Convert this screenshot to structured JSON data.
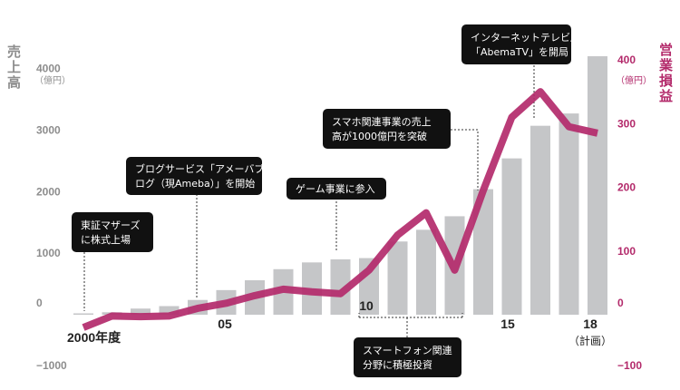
{
  "chart_data": {
    "type": "bar+line",
    "x_labels": [
      "2000年度",
      "05",
      "10",
      "15",
      "18"
    ],
    "x_label_sub": "（計画）",
    "left_axis": {
      "title": "売上高",
      "unit": "（億円）",
      "ticks": [
        4000,
        3000,
        2000,
        1000,
        0,
        -1000
      ],
      "tick_labels": [
        "4000",
        "3000",
        "2000",
        "1000",
        "0",
        "−1000"
      ],
      "ylim": [
        -1000,
        4000
      ]
    },
    "right_axis": {
      "title": "営業損益",
      "unit": "（億円）",
      "ticks": [
        400,
        300,
        200,
        100,
        0,
        -100
      ],
      "tick_labels": [
        "400",
        "300",
        "200",
        "100",
        "0",
        "−100"
      ],
      "ylim": [
        -100,
        400
      ]
    },
    "series": [
      {
        "type": "bar",
        "axis": "left",
        "color": "#c5c6c8",
        "x": [
          2000,
          2001,
          2002,
          2003,
          2004,
          2005,
          2006,
          2007,
          2008,
          2009,
          2010,
          2011,
          2012,
          2013,
          2014,
          2015,
          2016,
          2017,
          2018
        ],
        "values": [
          10,
          40,
          100,
          140,
          240,
          400,
          560,
          740,
          850,
          900,
          920,
          1190,
          1380,
          1600,
          2040,
          2540,
          3070,
          3270,
          4200
        ]
      },
      {
        "type": "line",
        "axis": "right",
        "color": "#b32a6b",
        "x": [
          2000,
          2001,
          2002,
          2003,
          2004,
          2005,
          2006,
          2007,
          2008,
          2009,
          2010,
          2011,
          2012,
          2013,
          2014,
          2015,
          2016,
          2017,
          2018
        ],
        "values": [
          -20,
          -2,
          -3,
          -2,
          10,
          18,
          30,
          40,
          36,
          33,
          70,
          125,
          160,
          70,
          195,
          310,
          350,
          295,
          285
        ]
      }
    ],
    "annotations": [
      {
        "lines": [
          "東証マザーズ",
          "に株式上場"
        ],
        "x": 2000
      },
      {
        "lines": [
          "ブログサービス「アメーバブ",
          "ログ（現Ameba）」を開始"
        ],
        "x": 2004
      },
      {
        "lines": [
          "ゲーム事業に参入"
        ],
        "x": 2009
      },
      {
        "lines": [
          "スマホ関連事業の売上",
          "高が1000億円を突破"
        ],
        "x": 2014
      },
      {
        "lines": [
          "インターネットテレビ局",
          "「AbemaTV」を開局"
        ],
        "x": 2016
      },
      {
        "lines": [
          "スマートフォン関連",
          "分野に積極投資"
        ],
        "x": 2012
      }
    ]
  }
}
